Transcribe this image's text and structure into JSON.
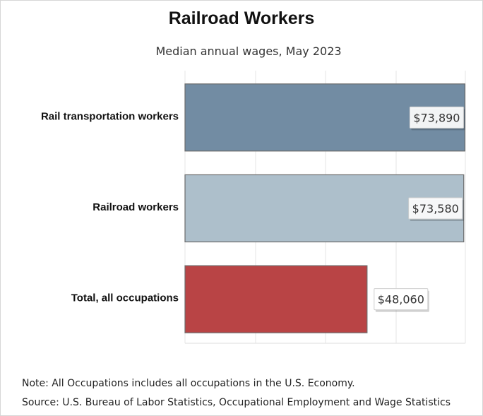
{
  "chart_data": {
    "type": "bar",
    "orientation": "horizontal",
    "title": "Railroad Workers",
    "subtitle": "Median annual wages, May 2023",
    "categories": [
      "Rail transportation workers",
      "Railroad workers",
      "Total, all occupations"
    ],
    "values": [
      73890,
      73580,
      48060
    ],
    "value_labels": [
      "$73,890",
      "$73,580",
      "$48,060"
    ],
    "bar_colors": [
      "#728ca3",
      "#adbfcb",
      "#b94445"
    ],
    "xlim": [
      0,
      74000
    ],
    "xlabel": "",
    "ylabel": "",
    "grid": true
  },
  "notes": {
    "note": "Note: All Occupations includes all occupations in the U.S. Economy.",
    "source": "Source: U.S. Bureau of Labor Statistics, Occupational Employment and Wage Statistics"
  }
}
